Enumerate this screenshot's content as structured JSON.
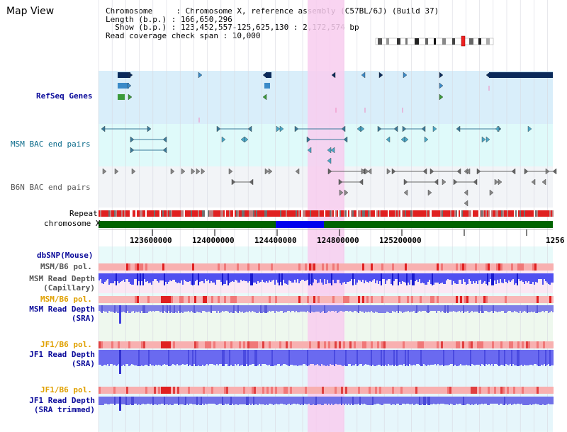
{
  "title": "Map View",
  "info": {
    "line1": "Chromosome     : Chromosome X, reference assembly (C57BL/6J) (Build 37)",
    "line2": "Length (b.p.) : 166,650,296",
    "line3": "  Show (b.p.) : 123,452,557-125,625,130 : 2,172,574 bp",
    "line4": "Read coverage check span : 10,000"
  },
  "tracks": {
    "refseq": "RefSeq Genes",
    "msm_bac": "MSM BAC end pairs",
    "b6n_bac": "B6N BAC end pairs",
    "repeat": "Repeat",
    "chromosome": "chromosome X",
    "dbsnp": "dbSNP(Mouse)",
    "msm_b6_pol_1": "MSM/B6 pol.",
    "msm_read_depth_cap_1": "MSM Read Depth",
    "msm_read_depth_cap_2": "(Capillary)",
    "msm_b6_pol_2": "MSM/B6 pol.",
    "msm_read_depth_sra_1": "MSM Read Depth",
    "msm_read_depth_sra_2": "(SRA)",
    "jf1_b6_pol_1": "JF1/B6 pol.",
    "jf1_read_depth_sra_1": "JF1 Read Depth",
    "jf1_read_depth_sra_2": "(SRA)",
    "jf1_b6_pol_2": "JF1/B6 pol.",
    "jf1_read_depth_trim_1": "JF1 Read Depth",
    "jf1_read_depth_trim_2": "(SRA trimmed)"
  },
  "axis": {
    "ticks": [
      "123600000",
      "124000000",
      "124400000",
      "124800000",
      "125200000",
      "1256"
    ]
  },
  "colors": {
    "refseq_bg": "#d9eefa",
    "msm_bac_bg": "#dffafa",
    "b6n_bac_bg": "#f2f4f7",
    "highlight": "#f8d0f0",
    "chromosome_bar": "#006400",
    "chromosome_sel": "#0000ee",
    "repeat_red": "#e02020",
    "depth_blue": "#4040f0",
    "pol_red": "#f05050"
  }
}
